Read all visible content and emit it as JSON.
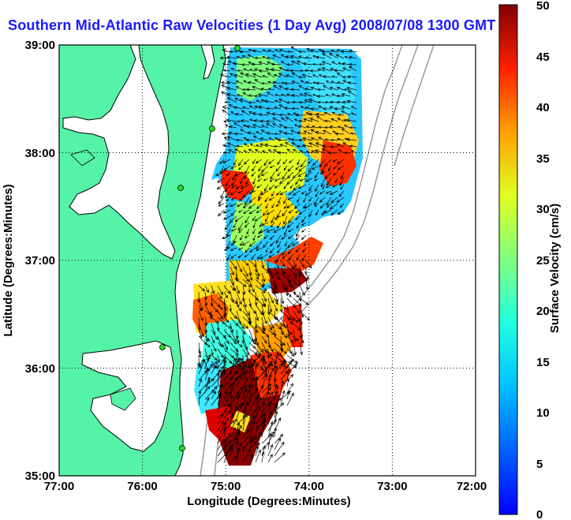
{
  "title": "Southern Mid-Atlantic Raw Velocities (1 Day Avg) 2008/07/08 1300 GMT",
  "map": {
    "xlabel": "Longitude (Degrees:Minutes)",
    "ylabel": "Latitude (Degrees:Minutes)",
    "x_ticks": [
      "77:00",
      "76:00",
      "75:00",
      "74:00",
      "73:00",
      "72:00"
    ],
    "y_ticks": [
      "39:00",
      "38:00",
      "37:00",
      "36:00",
      "35:00"
    ],
    "xlim": [
      -77,
      -72
    ],
    "ylim": [
      35,
      39
    ],
    "land_color": "#55f3a8",
    "grid": "dotted"
  },
  "colorbar": {
    "label": "Surface Velocity (cm/s)",
    "range": [
      0,
      50
    ],
    "ticks": [
      "50",
      "45",
      "40",
      "35",
      "30",
      "25",
      "20",
      "15",
      "10",
      "5",
      "0"
    ],
    "colormap": "jet"
  },
  "markers": {
    "color": "#22dd22",
    "description_sites": 5
  }
}
